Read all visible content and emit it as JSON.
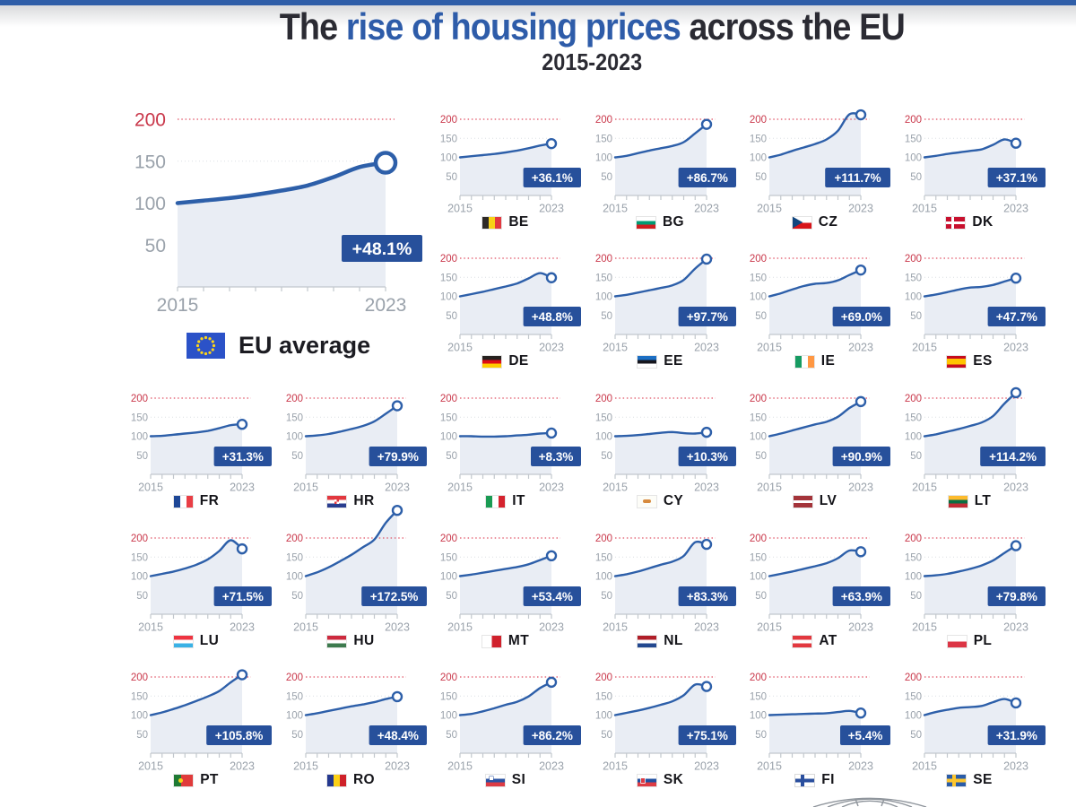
{
  "page": {
    "title_prefix": "The ",
    "title_highlight": "rise of housing prices",
    "title_suffix": " across the EU",
    "subtitle": "2015-2023",
    "legend_label": "EU average"
  },
  "colors": {
    "accent_blue": "#2d5fa9",
    "badge_blue": "#27509b",
    "red": "#c9374a",
    "red_dotted": "#e05263",
    "area_fill": "#e9edf4",
    "gray_label": "#9aa2ab",
    "grid_gray": "#d8dce1",
    "axis_gray": "#c2c7cd",
    "title_blue": "#2e5ca9",
    "title_dark": "#2b2b33"
  },
  "chart_data": {
    "type": "line",
    "title": "The rise of housing prices across the EU",
    "subtitle": "2015-2023",
    "x": [
      2015,
      2016,
      2017,
      2018,
      2019,
      2020,
      2021,
      2022,
      2023
    ],
    "x_tick_labels": [
      "2015",
      "2023"
    ],
    "y_ticks": [
      200,
      150,
      100,
      50
    ],
    "ylim": [
      0,
      200
    ],
    "grid": true,
    "eu_average": {
      "code": "EU",
      "label": "EU average",
      "change": "+48.1%",
      "values": [
        100,
        103,
        106,
        110,
        115,
        121,
        131,
        143,
        148.1
      ]
    },
    "countries": [
      {
        "code": "BE",
        "change": "+36.1%",
        "values": [
          100,
          103,
          106,
          109,
          113,
          118,
          124,
          131,
          136.1
        ]
      },
      {
        "code": "BG",
        "change": "+86.7%",
        "values": [
          100,
          104,
          111,
          118,
          124,
          130,
          140,
          163,
          186.7
        ]
      },
      {
        "code": "CZ",
        "change": "+111.7%",
        "values": [
          100,
          107,
          117,
          126,
          135,
          147,
          170,
          213,
          211.7
        ]
      },
      {
        "code": "DK",
        "change": "+37.1%",
        "values": [
          100,
          104,
          109,
          113,
          117,
          121,
          133,
          147,
          137.1
        ]
      },
      {
        "code": "DE",
        "change": "+48.8%",
        "values": [
          100,
          106,
          112,
          119,
          126,
          134,
          147,
          161,
          148.8
        ]
      },
      {
        "code": "EE",
        "change": "+97.7%",
        "values": [
          100,
          104,
          110,
          116,
          122,
          129,
          143,
          173,
          197.7
        ]
      },
      {
        "code": "IE",
        "change": "+69.0%",
        "values": [
          100,
          108,
          118,
          127,
          133,
          135,
          142,
          156,
          169.0
        ]
      },
      {
        "code": "ES",
        "change": "+47.7%",
        "values": [
          100,
          105,
          111,
          118,
          123,
          125,
          130,
          139,
          147.7
        ]
      },
      {
        "code": "FR",
        "change": "+31.3%",
        "values": [
          100,
          101,
          104,
          107,
          110,
          114,
          121,
          129,
          131.3
        ]
      },
      {
        "code": "HR",
        "change": "+79.9%",
        "values": [
          100,
          102,
          106,
          112,
          119,
          127,
          139,
          159,
          179.9
        ]
      },
      {
        "code": "IT",
        "change": "+8.3%",
        "values": [
          100,
          100,
          99,
          99,
          100,
          102,
          104,
          107,
          108.3
        ]
      },
      {
        "code": "CY",
        "change": "+10.3%",
        "values": [
          100,
          101,
          103,
          106,
          109,
          111,
          108,
          107,
          110.3
        ]
      },
      {
        "code": "LV",
        "change": "+90.9%",
        "values": [
          100,
          107,
          115,
          123,
          131,
          138,
          151,
          174,
          190.9
        ]
      },
      {
        "code": "LT",
        "change": "+114.2%",
        "values": [
          100,
          105,
          112,
          119,
          127,
          136,
          153,
          186,
          214.2
        ]
      },
      {
        "code": "LU",
        "change": "+71.5%",
        "values": [
          100,
          106,
          112,
          120,
          130,
          144,
          166,
          194,
          171.5
        ]
      },
      {
        "code": "HU",
        "change": "+172.5%",
        "values": [
          100,
          110,
          123,
          139,
          156,
          176,
          196,
          240,
          272.5
        ]
      },
      {
        "code": "MT",
        "change": "+53.4%",
        "values": [
          100,
          104,
          109,
          114,
          119,
          124,
          131,
          142,
          153.4
        ]
      },
      {
        "code": "NL",
        "change": "+83.3%",
        "values": [
          100,
          105,
          112,
          121,
          130,
          138,
          153,
          189,
          183.3
        ]
      },
      {
        "code": "AT",
        "change": "+63.9%",
        "values": [
          100,
          106,
          112,
          119,
          126,
          134,
          147,
          167,
          163.9
        ]
      },
      {
        "code": "PL",
        "change": "+79.8%",
        "values": [
          100,
          102,
          106,
          112,
          119,
          128,
          141,
          161,
          179.8
        ]
      },
      {
        "code": "PT",
        "change": "+105.8%",
        "values": [
          100,
          107,
          116,
          126,
          137,
          149,
          163,
          186,
          205.8
        ]
      },
      {
        "code": "RO",
        "change": "+48.4%",
        "values": [
          100,
          105,
          111,
          117,
          123,
          128,
          134,
          142,
          148.4
        ]
      },
      {
        "code": "SI",
        "change": "+86.2%",
        "values": [
          100,
          103,
          110,
          118,
          127,
          135,
          149,
          171,
          186.2
        ]
      },
      {
        "code": "SK",
        "change": "+75.1%",
        "values": [
          100,
          106,
          112,
          119,
          127,
          136,
          152,
          180,
          175.1
        ]
      },
      {
        "code": "FI",
        "change": "+5.4%",
        "values": [
          100,
          101,
          102,
          103,
          104,
          105,
          108,
          111,
          105.4
        ]
      },
      {
        "code": "SE",
        "change": "+31.9%",
        "values": [
          100,
          108,
          114,
          119,
          121,
          124,
          134,
          142,
          131.9
        ]
      }
    ]
  }
}
